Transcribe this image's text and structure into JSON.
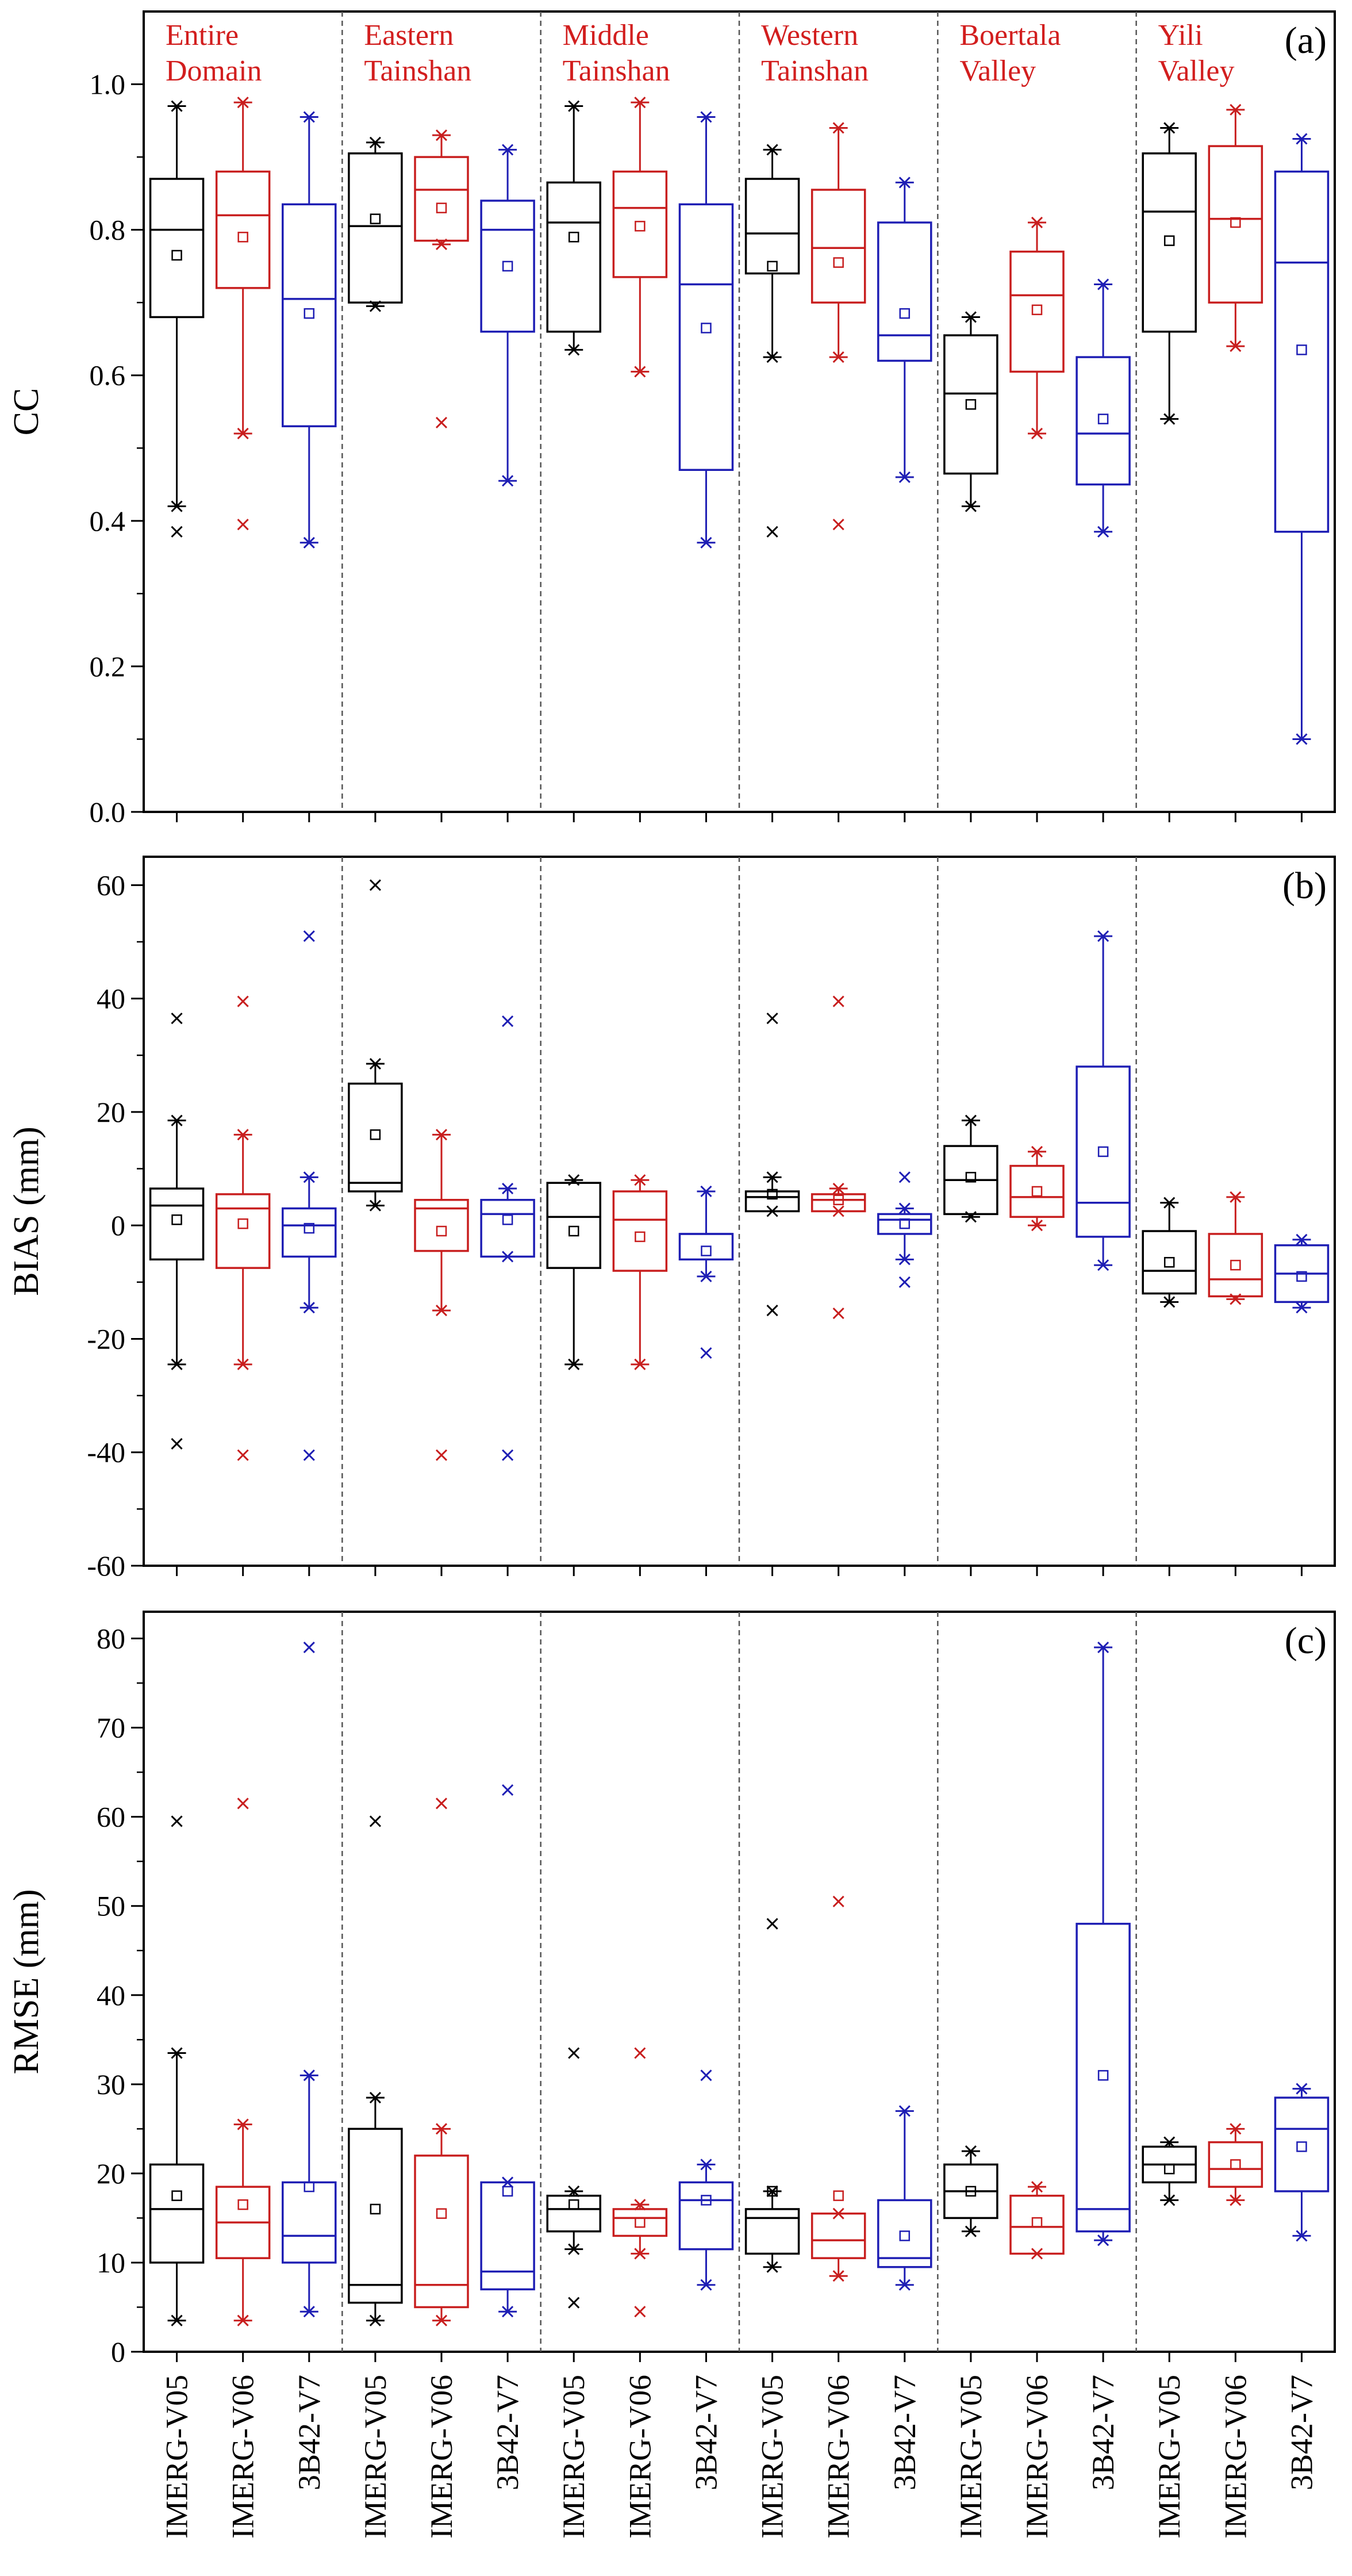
{
  "figure": {
    "categories": [
      "IMERG-V05",
      "IMERG-V06",
      "3B42-V7"
    ],
    "regions": [
      {
        "line1": "Entire",
        "line2": "Domain"
      },
      {
        "line1": "Eastern",
        "line2": "Tainshan"
      },
      {
        "line1": "Middle",
        "line2": "Tainshan"
      },
      {
        "line1": "Western",
        "line2": "Tainshan"
      },
      {
        "line1": "Boertala",
        "line2": "Valley"
      },
      {
        "line1": "Yili",
        "line2": "Valley"
      }
    ],
    "colors": {
      "IMERG-V05": "#000000",
      "IMERG-V06": "#c81e1e",
      "3B42-V7": "#1e1eb4",
      "region_label": "#d21e1e"
    }
  },
  "chart_data": [
    {
      "type": "box",
      "panel_label": "(a)",
      "ylabel": "CC",
      "ylim": [
        0,
        1.1
      ],
      "yticks": [
        0,
        0.2,
        0.4,
        0.6,
        0.8,
        1
      ],
      "ytick_labels": [
        "0.0",
        "0.2",
        "0.4",
        "0.6",
        "0.8",
        "1.0"
      ],
      "series": [
        {
          "region": "Entire Domain",
          "category": "IMERG-V05",
          "q1": 0.68,
          "median": 0.8,
          "q3": 0.87,
          "whisker_low": 0.42,
          "whisker_high": 0.97,
          "mean": 0.765,
          "outliers": [
            0.385
          ]
        },
        {
          "region": "Entire Domain",
          "category": "IMERG-V06",
          "q1": 0.72,
          "median": 0.82,
          "q3": 0.88,
          "whisker_low": 0.52,
          "whisker_high": 0.975,
          "mean": 0.79,
          "outliers": [
            0.395
          ]
        },
        {
          "region": "Entire Domain",
          "category": "3B42-V7",
          "q1": 0.53,
          "median": 0.705,
          "q3": 0.835,
          "whisker_low": 0.37,
          "whisker_high": 0.955,
          "mean": 0.685,
          "outliers": []
        },
        {
          "region": "Eastern Tainshan",
          "category": "IMERG-V05",
          "q1": 0.7,
          "median": 0.805,
          "q3": 0.905,
          "whisker_low": 0.695,
          "whisker_high": 0.92,
          "mean": 0.815,
          "outliers": []
        },
        {
          "region": "Eastern Tainshan",
          "category": "IMERG-V06",
          "q1": 0.785,
          "median": 0.855,
          "q3": 0.9,
          "whisker_low": 0.78,
          "whisker_high": 0.93,
          "mean": 0.83,
          "outliers": [
            0.535
          ]
        },
        {
          "region": "Eastern Tainshan",
          "category": "3B42-V7",
          "q1": 0.66,
          "median": 0.8,
          "q3": 0.84,
          "whisker_low": 0.455,
          "whisker_high": 0.91,
          "mean": 0.75,
          "outliers": []
        },
        {
          "region": "Middle Tainshan",
          "category": "IMERG-V05",
          "q1": 0.66,
          "median": 0.81,
          "q3": 0.865,
          "whisker_low": 0.635,
          "whisker_high": 0.97,
          "mean": 0.79,
          "outliers": []
        },
        {
          "region": "Middle Tainshan",
          "category": "IMERG-V06",
          "q1": 0.735,
          "median": 0.83,
          "q3": 0.88,
          "whisker_low": 0.605,
          "whisker_high": 0.975,
          "mean": 0.805,
          "outliers": []
        },
        {
          "region": "Middle Tainshan",
          "category": "3B42-V7",
          "q1": 0.47,
          "median": 0.725,
          "q3": 0.835,
          "whisker_low": 0.37,
          "whisker_high": 0.955,
          "mean": 0.665,
          "outliers": []
        },
        {
          "region": "Western Tainshan",
          "category": "IMERG-V05",
          "q1": 0.74,
          "median": 0.795,
          "q3": 0.87,
          "whisker_low": 0.625,
          "whisker_high": 0.91,
          "mean": 0.75,
          "outliers": [
            0.385
          ]
        },
        {
          "region": "Western Tainshan",
          "category": "IMERG-V06",
          "q1": 0.7,
          "median": 0.775,
          "q3": 0.855,
          "whisker_low": 0.625,
          "whisker_high": 0.94,
          "mean": 0.755,
          "outliers": [
            0.395
          ]
        },
        {
          "region": "Western Tainshan",
          "category": "3B42-V7",
          "q1": 0.62,
          "median": 0.655,
          "q3": 0.81,
          "whisker_low": 0.46,
          "whisker_high": 0.865,
          "mean": 0.685,
          "outliers": []
        },
        {
          "region": "Boertala Valley",
          "category": "IMERG-V05",
          "q1": 0.465,
          "median": 0.575,
          "q3": 0.655,
          "whisker_low": 0.42,
          "whisker_high": 0.68,
          "mean": 0.56,
          "outliers": []
        },
        {
          "region": "Boertala Valley",
          "category": "IMERG-V06",
          "q1": 0.605,
          "median": 0.71,
          "q3": 0.77,
          "whisker_low": 0.52,
          "whisker_high": 0.81,
          "mean": 0.69,
          "outliers": []
        },
        {
          "region": "Boertala Valley",
          "category": "3B42-V7",
          "q1": 0.45,
          "median": 0.52,
          "q3": 0.625,
          "whisker_low": 0.385,
          "whisker_high": 0.725,
          "mean": 0.54,
          "outliers": []
        },
        {
          "region": "Yili Valley",
          "category": "IMERG-V05",
          "q1": 0.66,
          "median": 0.825,
          "q3": 0.905,
          "whisker_low": 0.54,
          "whisker_high": 0.94,
          "mean": 0.785,
          "outliers": []
        },
        {
          "region": "Yili Valley",
          "category": "IMERG-V06",
          "q1": 0.7,
          "median": 0.815,
          "q3": 0.915,
          "whisker_low": 0.64,
          "whisker_high": 0.965,
          "mean": 0.81,
          "outliers": []
        },
        {
          "region": "Yili Valley",
          "category": "3B42-V7",
          "q1": 0.385,
          "median": 0.755,
          "q3": 0.88,
          "whisker_low": 0.1,
          "whisker_high": 0.925,
          "mean": 0.635,
          "outliers": []
        }
      ]
    },
    {
      "type": "box",
      "panel_label": "(b)",
      "ylabel": "BIAS (mm)",
      "ylim": [
        -60,
        65
      ],
      "yticks": [
        -60,
        -40,
        -20,
        0,
        20,
        40,
        60
      ],
      "ytick_labels": [
        "-60",
        "-40",
        "-20",
        "0",
        "20",
        "40",
        "60"
      ],
      "series": [
        {
          "region": "Entire Domain",
          "category": "IMERG-V05",
          "q1": -6,
          "median": 3.5,
          "q3": 6.5,
          "whisker_low": -24.5,
          "whisker_high": 18.5,
          "mean": 1,
          "outliers": [
            36.5,
            -38.5
          ]
        },
        {
          "region": "Entire Domain",
          "category": "IMERG-V06",
          "q1": -7.5,
          "median": 3,
          "q3": 5.5,
          "whisker_low": -24.5,
          "whisker_high": 16,
          "mean": 0.3,
          "outliers": [
            39.5,
            -40.5
          ]
        },
        {
          "region": "Entire Domain",
          "category": "3B42-V7",
          "q1": -5.5,
          "median": 0,
          "q3": 3,
          "whisker_low": -14.5,
          "whisker_high": 8.5,
          "mean": -0.5,
          "outliers": [
            51,
            -40.5
          ]
        },
        {
          "region": "Eastern Tainshan",
          "category": "IMERG-V05",
          "q1": 6,
          "median": 7.5,
          "q3": 25,
          "whisker_low": 3.5,
          "whisker_high": 28.5,
          "mean": 16,
          "outliers": [
            60
          ]
        },
        {
          "region": "Eastern Tainshan",
          "category": "IMERG-V06",
          "q1": -4.5,
          "median": 3,
          "q3": 4.5,
          "whisker_low": -15,
          "whisker_high": 16,
          "mean": -1,
          "outliers": [
            -40.5
          ]
        },
        {
          "region": "Eastern Tainshan",
          "category": "3B42-V7",
          "q1": -5.5,
          "median": 2,
          "q3": 4.5,
          "whisker_low": -5.5,
          "whisker_high": 6.5,
          "mean": 1,
          "outliers": [
            36,
            -40.5
          ]
        },
        {
          "region": "Middle Tainshan",
          "category": "IMERG-V05",
          "q1": -7.5,
          "median": 1.5,
          "q3": 7.5,
          "whisker_low": -24.5,
          "whisker_high": 8,
          "mean": -1,
          "outliers": []
        },
        {
          "region": "Middle Tainshan",
          "category": "IMERG-V06",
          "q1": -8,
          "median": 1,
          "q3": 6,
          "whisker_low": -24.5,
          "whisker_high": 8,
          "mean": -2,
          "outliers": []
        },
        {
          "region": "Middle Tainshan",
          "category": "3B42-V7",
          "q1": -6,
          "median": -1.5,
          "q3": -1.5,
          "whisker_low": -9,
          "whisker_high": 6,
          "mean": -4.5,
          "outliers": [
            -22.5
          ]
        },
        {
          "region": "Western Tainshan",
          "category": "IMERG-V05",
          "q1": 2.5,
          "median": 5,
          "q3": 6,
          "whisker_low": 2.5,
          "whisker_high": 8.5,
          "mean": 5.5,
          "outliers": [
            36.5,
            -15
          ]
        },
        {
          "region": "Western Tainshan",
          "category": "IMERG-V06",
          "q1": 2.5,
          "median": 4.5,
          "q3": 5.5,
          "whisker_low": 2.5,
          "whisker_high": 6.5,
          "mean": 4.5,
          "outliers": [
            39.5,
            -15.5
          ]
        },
        {
          "region": "Western Tainshan",
          "category": "3B42-V7",
          "q1": -1.5,
          "median": 1,
          "q3": 2,
          "whisker_low": -6,
          "whisker_high": 3,
          "mean": 0.3,
          "outliers": [
            8.5,
            -10
          ]
        },
        {
          "region": "Boertala Valley",
          "category": "IMERG-V05",
          "q1": 2,
          "median": 8,
          "q3": 14,
          "whisker_low": 1.5,
          "whisker_high": 18.5,
          "mean": 8.5,
          "outliers": []
        },
        {
          "region": "Boertala Valley",
          "category": "IMERG-V06",
          "q1": 1.5,
          "median": 5,
          "q3": 10.5,
          "whisker_low": 0,
          "whisker_high": 13,
          "mean": 6,
          "outliers": []
        },
        {
          "region": "Boertala Valley",
          "category": "3B42-V7",
          "q1": -2,
          "median": 4,
          "q3": 28,
          "whisker_low": -7,
          "whisker_high": 51,
          "mean": 13,
          "outliers": []
        },
        {
          "region": "Yili Valley",
          "category": "IMERG-V05",
          "q1": -12,
          "median": -8,
          "q3": -1,
          "whisker_low": -13.5,
          "whisker_high": 4,
          "mean": -6.5,
          "outliers": []
        },
        {
          "region": "Yili Valley",
          "category": "IMERG-V06",
          "q1": -12.5,
          "median": -9.5,
          "q3": -1.5,
          "whisker_low": -13,
          "whisker_high": 5,
          "mean": -7,
          "outliers": []
        },
        {
          "region": "Yili Valley",
          "category": "3B42-V7",
          "q1": -13.5,
          "median": -8.5,
          "q3": -3.5,
          "whisker_low": -14.5,
          "whisker_high": -2.5,
          "mean": -9,
          "outliers": []
        }
      ]
    },
    {
      "type": "box",
      "panel_label": "(c)",
      "ylabel": "RMSE (mm)",
      "ylim": [
        0,
        83
      ],
      "yticks": [
        0,
        10,
        20,
        30,
        40,
        50,
        60,
        70,
        80
      ],
      "ytick_labels": [
        "0",
        "10",
        "20",
        "30",
        "40",
        "50",
        "60",
        "70",
        "80"
      ],
      "series": [
        {
          "region": "Entire Domain",
          "category": "IMERG-V05",
          "q1": 10,
          "median": 16,
          "q3": 21,
          "whisker_low": 3.5,
          "whisker_high": 33.5,
          "mean": 17.5,
          "outliers": [
            59.5
          ]
        },
        {
          "region": "Entire Domain",
          "category": "IMERG-V06",
          "q1": 10.5,
          "median": 14.5,
          "q3": 18.5,
          "whisker_low": 3.5,
          "whisker_high": 25.5,
          "mean": 16.5,
          "outliers": [
            61.5
          ]
        },
        {
          "region": "Entire Domain",
          "category": "3B42-V7",
          "q1": 10,
          "median": 13,
          "q3": 19,
          "whisker_low": 4.5,
          "whisker_high": 31,
          "mean": 18.5,
          "outliers": [
            79
          ]
        },
        {
          "region": "Eastern Tainshan",
          "category": "IMERG-V05",
          "q1": 5.5,
          "median": 7.5,
          "q3": 25,
          "whisker_low": 3.5,
          "whisker_high": 28.5,
          "mean": 16,
          "outliers": [
            59.5
          ]
        },
        {
          "region": "Eastern Tainshan",
          "category": "IMERG-V06",
          "q1": 5,
          "median": 7.5,
          "q3": 22,
          "whisker_low": 3.5,
          "whisker_high": 25,
          "mean": 15.5,
          "outliers": [
            61.5
          ]
        },
        {
          "region": "Eastern Tainshan",
          "category": "3B42-V7",
          "q1": 7,
          "median": 9,
          "q3": 19,
          "whisker_low": 4.5,
          "whisker_high": 19,
          "mean": 18,
          "outliers": [
            63
          ]
        },
        {
          "region": "Middle Tainshan",
          "category": "IMERG-V05",
          "q1": 13.5,
          "median": 16,
          "q3": 17.5,
          "whisker_low": 11.5,
          "whisker_high": 18,
          "mean": 16.5,
          "outliers": [
            33.5,
            5.5
          ]
        },
        {
          "region": "Middle Tainshan",
          "category": "IMERG-V06",
          "q1": 13,
          "median": 15,
          "q3": 16,
          "whisker_low": 11,
          "whisker_high": 16.5,
          "mean": 14.5,
          "outliers": [
            33.5,
            4.5
          ]
        },
        {
          "region": "Middle Tainshan",
          "category": "3B42-V7",
          "q1": 11.5,
          "median": 17,
          "q3": 19,
          "whisker_low": 7.5,
          "whisker_high": 21,
          "mean": 17,
          "outliers": [
            31
          ]
        },
        {
          "region": "Western Tainshan",
          "category": "IMERG-V05",
          "q1": 11,
          "median": 15,
          "q3": 16,
          "whisker_low": 9.5,
          "whisker_high": 18,
          "mean": 18,
          "outliers": [
            48
          ]
        },
        {
          "region": "Western Tainshan",
          "category": "IMERG-V06",
          "q1": 10.5,
          "median": 12.5,
          "q3": 15.5,
          "whisker_low": 8.5,
          "whisker_high": 15.5,
          "mean": 17.5,
          "outliers": [
            50.5
          ]
        },
        {
          "region": "Western Tainshan",
          "category": "3B42-V7",
          "q1": 9.5,
          "median": 10.5,
          "q3": 17,
          "whisker_low": 7.5,
          "whisker_high": 27,
          "mean": 13,
          "outliers": []
        },
        {
          "region": "Boertala Valley",
          "category": "IMERG-V05",
          "q1": 15,
          "median": 18,
          "q3": 21,
          "whisker_low": 13.5,
          "whisker_high": 22.5,
          "mean": 18,
          "outliers": []
        },
        {
          "region": "Boertala Valley",
          "category": "IMERG-V06",
          "q1": 11,
          "median": 14,
          "q3": 17.5,
          "whisker_low": 11,
          "whisker_high": 18.5,
          "mean": 14.5,
          "outliers": []
        },
        {
          "region": "Boertala Valley",
          "category": "3B42-V7",
          "q1": 13.5,
          "median": 16,
          "q3": 48,
          "whisker_low": 12.5,
          "whisker_high": 79,
          "mean": 31,
          "outliers": []
        },
        {
          "region": "Yili Valley",
          "category": "IMERG-V05",
          "q1": 19,
          "median": 21,
          "q3": 23,
          "whisker_low": 17,
          "whisker_high": 23.5,
          "mean": 20.5,
          "outliers": []
        },
        {
          "region": "Yili Valley",
          "category": "IMERG-V06",
          "q1": 18.5,
          "median": 20.5,
          "q3": 23.5,
          "whisker_low": 17,
          "whisker_high": 25,
          "mean": 21,
          "outliers": []
        },
        {
          "region": "Yili Valley",
          "category": "3B42-V7",
          "q1": 18,
          "median": 25,
          "q3": 28.5,
          "whisker_low": 13,
          "whisker_high": 29.5,
          "mean": 23,
          "outliers": []
        }
      ]
    }
  ]
}
